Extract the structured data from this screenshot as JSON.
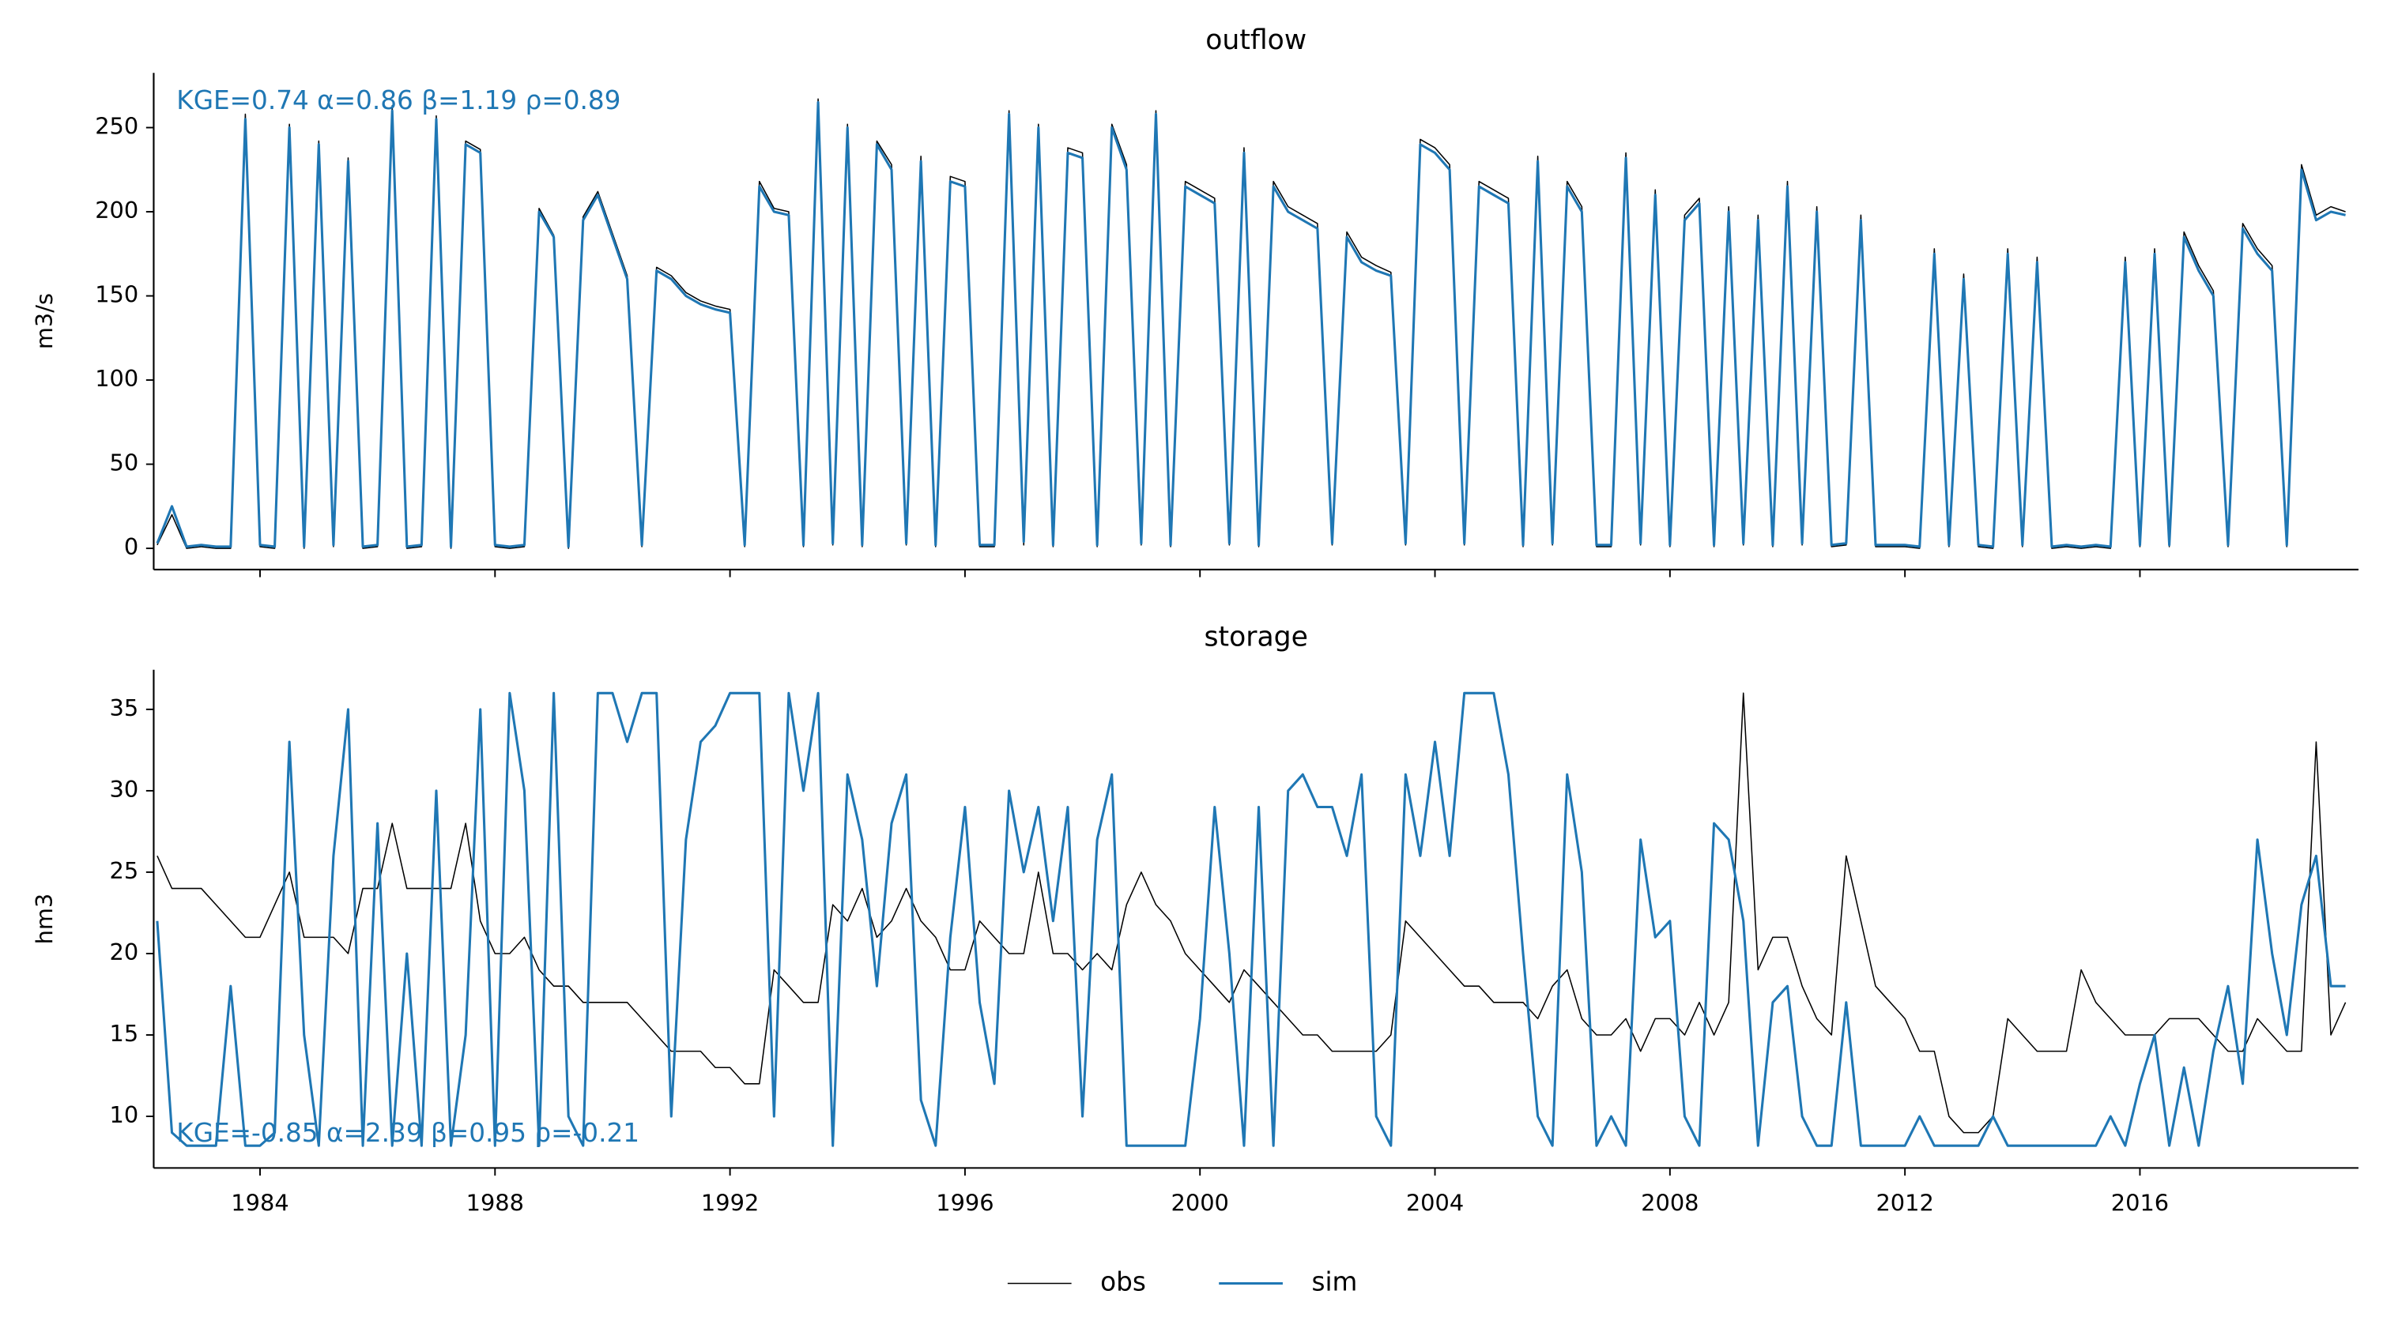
{
  "chart_data": [
    {
      "type": "line",
      "title": "outflow",
      "y_label": "m3/s",
      "annotation": "KGE=0.74  α=0.86  β=1.19  ρ=0.89",
      "annotation_position": "upper left",
      "x": [
        1982.25,
        1982.5,
        1982.75,
        1983,
        1983.25,
        1983.5,
        1983.75,
        1984,
        1984.25,
        1984.5,
        1984.75,
        1985,
        1985.25,
        1985.5,
        1985.75,
        1986,
        1986.25,
        1986.5,
        1986.75,
        1987,
        1987.25,
        1987.5,
        1987.75,
        1988,
        1988.25,
        1988.5,
        1988.75,
        1989,
        1989.25,
        1989.5,
        1989.75,
        1990,
        1990.25,
        1990.5,
        1990.75,
        1991,
        1991.25,
        1991.5,
        1991.75,
        1992,
        1992.25,
        1992.5,
        1992.75,
        1993,
        1993.25,
        1993.5,
        1993.75,
        1994,
        1994.25,
        1994.5,
        1994.75,
        1995,
        1995.25,
        1995.5,
        1995.75,
        1996,
        1996.25,
        1996.5,
        1996.75,
        1997,
        1997.25,
        1997.5,
        1997.75,
        1998,
        1998.25,
        1998.5,
        1998.75,
        1999,
        1999.25,
        1999.5,
        1999.75,
        2000,
        2000.25,
        2000.5,
        2000.75,
        2001,
        2001.25,
        2001.5,
        2001.75,
        2002,
        2002.25,
        2002.5,
        2002.75,
        2003,
        2003.25,
        2003.5,
        2003.75,
        2004,
        2004.25,
        2004.5,
        2004.75,
        2005,
        2005.25,
        2005.5,
        2005.75,
        2006,
        2006.25,
        2006.5,
        2006.75,
        2007,
        2007.25,
        2007.5,
        2007.75,
        2008,
        2008.25,
        2008.5,
        2008.75,
        2009,
        2009.25,
        2009.5,
        2009.75,
        2010,
        2010.25,
        2010.5,
        2010.75,
        2011,
        2011.25,
        2011.5,
        2011.75,
        2012,
        2012.25,
        2012.5,
        2012.75,
        2013,
        2013.25,
        2013.5,
        2013.75,
        2014,
        2014.25,
        2014.5,
        2014.75,
        2015,
        2015.25,
        2015.5,
        2015.75,
        2016,
        2016.25,
        2016.5,
        2016.75,
        2017,
        2017.25,
        2017.5,
        2017.75,
        2018,
        2018.25,
        2018.5,
        2018.75,
        2019,
        2019.25,
        2019.5
      ],
      "series": [
        {
          "name": "obs",
          "color": "#000000",
          "width": 0.8,
          "values": [
            2,
            20,
            0,
            1,
            0,
            0,
            258,
            1,
            0,
            252,
            0,
            242,
            1,
            232,
            0,
            1,
            263,
            0,
            1,
            257,
            0,
            242,
            237,
            1,
            0,
            1,
            202,
            186,
            0,
            197,
            212,
            187,
            162,
            1,
            167,
            162,
            152,
            147,
            144,
            142,
            1,
            218,
            202,
            200,
            1,
            267,
            2,
            252,
            1,
            242,
            228,
            2,
            233,
            1,
            221,
            218,
            1,
            1,
            260,
            2,
            252,
            1,
            238,
            235,
            1,
            252,
            228,
            2,
            260,
            1,
            218,
            213,
            208,
            2,
            238,
            1,
            218,
            203,
            198,
            193,
            2,
            188,
            173,
            168,
            164,
            2,
            243,
            238,
            228,
            2,
            218,
            213,
            208,
            1,
            233,
            2,
            218,
            203,
            1,
            1,
            235,
            2,
            213,
            1,
            198,
            208,
            1,
            203,
            2,
            198,
            1,
            218,
            2,
            203,
            1,
            2,
            198,
            1,
            1,
            1,
            0,
            178,
            1,
            163,
            1,
            0,
            178,
            1,
            173,
            0,
            1,
            0,
            1,
            0,
            173,
            1,
            178,
            1,
            188,
            168,
            153,
            1,
            193,
            178,
            168,
            1,
            228,
            198,
            203,
            200
          ]
        },
        {
          "name": "sim",
          "color": "#1f77b4",
          "width": 1.6,
          "values": [
            3,
            25,
            1,
            2,
            1,
            1,
            255,
            2,
            1,
            250,
            1,
            240,
            2,
            230,
            1,
            2,
            260,
            1,
            2,
            255,
            1,
            240,
            235,
            2,
            1,
            2,
            200,
            185,
            1,
            195,
            210,
            185,
            160,
            2,
            165,
            160,
            150,
            145,
            142,
            140,
            2,
            215,
            200,
            198,
            2,
            265,
            3,
            250,
            2,
            240,
            225,
            3,
            230,
            2,
            218,
            215,
            2,
            2,
            258,
            4,
            250,
            2,
            235,
            232,
            2,
            250,
            225,
            3,
            258,
            2,
            215,
            210,
            205,
            3,
            235,
            2,
            215,
            200,
            195,
            190,
            3,
            185,
            170,
            165,
            162,
            3,
            240,
            235,
            225,
            3,
            215,
            210,
            205,
            2,
            230,
            3,
            215,
            200,
            2,
            2,
            232,
            3,
            210,
            2,
            195,
            205,
            2,
            200,
            3,
            195,
            2,
            215,
            3,
            200,
            2,
            3,
            195,
            2,
            2,
            2,
            1,
            175,
            2,
            160,
            2,
            1,
            175,
            2,
            170,
            1,
            2,
            1,
            2,
            1,
            170,
            2,
            175,
            2,
            185,
            165,
            150,
            2,
            190,
            175,
            165,
            2,
            225,
            195,
            200,
            198
          ]
        }
      ],
      "xlim": [
        1982.19,
        2019.72
      ],
      "xticks": [
        1984,
        1988,
        1992,
        1996,
        2000,
        2004,
        2008,
        2012,
        2016
      ],
      "ylim": [
        -12.6,
        282.5
      ],
      "yticks": [
        0,
        50,
        100,
        150,
        200,
        250
      ]
    },
    {
      "type": "line",
      "title": "storage",
      "y_label": "hm3",
      "annotation": "KGE=-0.85  α=2.39  β=0.95  ρ=-0.21",
      "annotation_position": "lower left",
      "x": [
        1982.25,
        1982.5,
        1982.75,
        1983,
        1983.25,
        1983.5,
        1983.75,
        1984,
        1984.25,
        1984.5,
        1984.75,
        1985,
        1985.25,
        1985.5,
        1985.75,
        1986,
        1986.25,
        1986.5,
        1986.75,
        1987,
        1987.25,
        1987.5,
        1987.75,
        1988,
        1988.25,
        1988.5,
        1988.75,
        1989,
        1989.25,
        1989.5,
        1989.75,
        1990,
        1990.25,
        1990.5,
        1990.75,
        1991,
        1991.25,
        1991.5,
        1991.75,
        1992,
        1992.25,
        1992.5,
        1992.75,
        1993,
        1993.25,
        1993.5,
        1993.75,
        1994,
        1994.25,
        1994.5,
        1994.75,
        1995,
        1995.25,
        1995.5,
        1995.75,
        1996,
        1996.25,
        1996.5,
        1996.75,
        1997,
        1997.25,
        1997.5,
        1997.75,
        1998,
        1998.25,
        1998.5,
        1998.75,
        1999,
        1999.25,
        1999.5,
        1999.75,
        2000,
        2000.25,
        2000.5,
        2000.75,
        2001,
        2001.25,
        2001.5,
        2001.75,
        2002,
        2002.25,
        2002.5,
        2002.75,
        2003,
        2003.25,
        2003.5,
        2003.75,
        2004,
        2004.25,
        2004.5,
        2004.75,
        2005,
        2005.25,
        2005.5,
        2005.75,
        2006,
        2006.25,
        2006.5,
        2006.75,
        2007,
        2007.25,
        2007.5,
        2007.75,
        2008,
        2008.25,
        2008.5,
        2008.75,
        2009,
        2009.25,
        2009.5,
        2009.75,
        2010,
        2010.25,
        2010.5,
        2010.75,
        2011,
        2011.25,
        2011.5,
        2011.75,
        2012,
        2012.25,
        2012.5,
        2012.75,
        2013,
        2013.25,
        2013.5,
        2013.75,
        2014,
        2014.25,
        2014.5,
        2014.75,
        2015,
        2015.25,
        2015.5,
        2015.75,
        2016,
        2016.25,
        2016.5,
        2016.75,
        2017,
        2017.25,
        2017.5,
        2017.75,
        2018,
        2018.25,
        2018.5,
        2018.75,
        2019,
        2019.25,
        2019.5
      ],
      "series": [
        {
          "name": "obs",
          "color": "#000000",
          "width": 0.8,
          "values": [
            26,
            24,
            24,
            24,
            23,
            22,
            21,
            21,
            23,
            25,
            21,
            21,
            21,
            20,
            24,
            24,
            28,
            24,
            24,
            24,
            24,
            28,
            22,
            20,
            20,
            21,
            19,
            18,
            18,
            17,
            17,
            17,
            17,
            16,
            15,
            14,
            14,
            14,
            13,
            13,
            12,
            12,
            19,
            18,
            17,
            17,
            23,
            22,
            24,
            21,
            22,
            24,
            22,
            21,
            19,
            19,
            22,
            21,
            20,
            20,
            25,
            20,
            20,
            19,
            20,
            19,
            23,
            25,
            23,
            22,
            20,
            19,
            18,
            17,
            19,
            18,
            17,
            16,
            15,
            15,
            14,
            14,
            14,
            14,
            15,
            22,
            21,
            20,
            19,
            18,
            18,
            17,
            17,
            17,
            16,
            18,
            19,
            16,
            15,
            15,
            16,
            14,
            16,
            16,
            15,
            17,
            15,
            17,
            36,
            19,
            21,
            21,
            18,
            16,
            15,
            26,
            22,
            18,
            17,
            16,
            14,
            14,
            10,
            9,
            9,
            10,
            16,
            15,
            14,
            14,
            14,
            19,
            17,
            16,
            15,
            15,
            15,
            16,
            16,
            16,
            15,
            14,
            14,
            16,
            15,
            14,
            14,
            33,
            15,
            17
          ]
        },
        {
          "name": "sim",
          "color": "#1f77b4",
          "width": 1.6,
          "values": [
            22,
            9,
            8.2,
            8.2,
            8.2,
            18,
            8.2,
            8.2,
            9,
            33,
            15,
            8.2,
            26,
            35,
            8.2,
            28,
            8.2,
            20,
            8.2,
            30,
            8.2,
            15,
            35,
            8.2,
            36,
            30,
            8.2,
            36,
            10,
            8.2,
            36,
            36,
            33,
            36,
            36,
            10,
            27,
            33,
            34,
            36,
            36,
            36,
            10,
            36,
            30,
            36,
            8.2,
            31,
            27,
            18,
            28,
            31,
            11,
            8.2,
            21,
            29,
            17,
            12,
            30,
            25,
            29,
            22,
            29,
            10,
            27,
            31,
            8.2,
            8.2,
            8.2,
            8.2,
            8.2,
            16,
            29,
            20,
            8.2,
            29,
            8.2,
            30,
            31,
            29,
            29,
            26,
            31,
            10,
            8.2,
            31,
            26,
            33,
            26,
            36,
            36,
            36,
            31,
            20,
            10,
            8.2,
            31,
            25,
            8.2,
            10,
            8.2,
            27,
            21,
            22,
            10,
            8.2,
            28,
            27,
            22,
            8.2,
            17,
            18,
            10,
            8.2,
            8.2,
            17,
            8.2,
            8.2,
            8.2,
            8.2,
            10,
            8.2,
            8.2,
            8.2,
            8.2,
            10,
            8.2,
            8.2,
            8.2,
            8.2,
            8.2,
            8.2,
            8.2,
            10,
            8.2,
            12,
            15,
            8.2,
            13,
            8.2,
            14,
            18,
            12,
            27,
            20,
            15,
            23,
            26,
            18,
            18
          ]
        }
      ],
      "xlim": [
        1982.19,
        2019.72
      ],
      "xticks": [
        1984,
        1988,
        1992,
        1996,
        2000,
        2004,
        2008,
        2012,
        2016
      ],
      "ylim": [
        6.83,
        37.43
      ],
      "yticks": [
        10,
        15,
        20,
        25,
        30,
        35
      ]
    }
  ]
}
